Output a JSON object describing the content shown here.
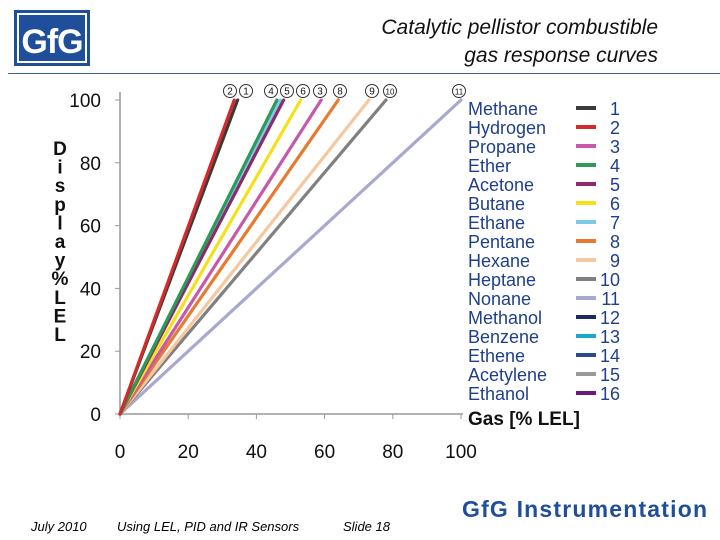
{
  "header": {
    "logo_text": "GfG",
    "title_line1": "Catalytic pellistor combustible",
    "title_line2": "gas response curves"
  },
  "footer": {
    "date": "July 2010",
    "topic": "Using LEL, PID and IR Sensors",
    "slide": "Slide 18",
    "brand": "GfG Instrumentation"
  },
  "chart_data": {
    "type": "line",
    "title": "",
    "xlabel": "Gas [% LEL]",
    "ylabel": "Display % LEL",
    "xlim": [
      0,
      100
    ],
    "ylim": [
      0,
      100
    ],
    "xticks": [
      "0",
      "20",
      "40",
      "60",
      "80",
      "100"
    ],
    "yticks": [
      "0",
      "20",
      "40",
      "60",
      "80",
      "100"
    ],
    "grid": false,
    "legend_position": "right",
    "series": [
      {
        "name": "Methane",
        "number": "1",
        "color": "#3a3a3a",
        "x": [
          0,
          34.5
        ],
        "y": [
          0,
          100
        ]
      },
      {
        "name": "Hydrogen",
        "number": "2",
        "color": "#d42a2a",
        "x": [
          0,
          33.5
        ],
        "y": [
          0,
          100
        ]
      },
      {
        "name": "Propane",
        "number": "3",
        "color": "#c45aa8",
        "x": [
          0,
          59
        ],
        "y": [
          0,
          100
        ]
      },
      {
        "name": "Ether",
        "number": "4",
        "color": "#2e9a5a",
        "x": [
          0,
          46
        ],
        "y": [
          0,
          100
        ]
      },
      {
        "name": "Acetone",
        "number": "5",
        "color": "#8a2c6a",
        "x": [
          0,
          48
        ],
        "y": [
          0,
          100
        ]
      },
      {
        "name": "Butane",
        "number": "6",
        "color": "#f2e21c",
        "x": [
          0,
          53
        ],
        "y": [
          0,
          100
        ]
      },
      {
        "name": "Ethane",
        "number": "7",
        "color": "#7ec8e8",
        "x": [
          0,
          47
        ],
        "y": [
          0,
          100
        ]
      },
      {
        "name": "Pentane",
        "number": "8",
        "color": "#e87a30",
        "x": [
          0,
          64
        ],
        "y": [
          0,
          100
        ]
      },
      {
        "name": "Hexane",
        "number": "9",
        "color": "#f5c8a0",
        "x": [
          0,
          73
        ],
        "y": [
          0,
          100
        ]
      },
      {
        "name": "Heptane",
        "number": "10",
        "color": "#808080",
        "x": [
          0,
          78
        ],
        "y": [
          0,
          100
        ]
      },
      {
        "name": "Nonane",
        "number": "11",
        "color": "#a8a8d0",
        "x": [
          0,
          100
        ],
        "y": [
          0,
          100
        ]
      },
      {
        "name": "Methanol",
        "number": "12",
        "color": "#1a2a5a",
        "x": [],
        "y": []
      },
      {
        "name": "Benzene",
        "number": "13",
        "color": "#1aa8c8",
        "x": [],
        "y": []
      },
      {
        "name": "Ethene",
        "number": "14",
        "color": "#2a4a8a",
        "x": [],
        "y": []
      },
      {
        "name": "Acetylene",
        "number": "15",
        "color": "#9a9a9a",
        "x": [],
        "y": []
      },
      {
        "name": "Ethanol",
        "number": "16",
        "color": "#6a1a7a",
        "x": [],
        "y": []
      }
    ],
    "annotations": [
      "2",
      "1",
      "4",
      "5",
      "6",
      "3",
      "8",
      "9",
      "10",
      "11"
    ]
  }
}
